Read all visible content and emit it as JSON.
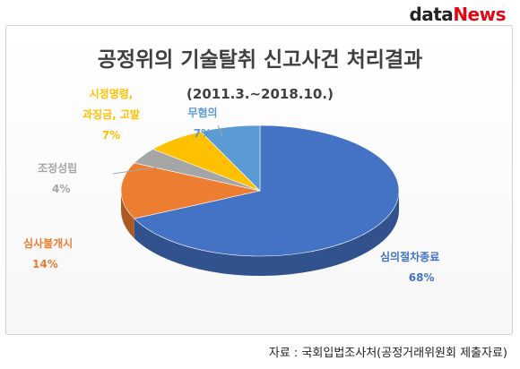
{
  "logo": {
    "part1": "data",
    "part2": "News"
  },
  "chart_data": {
    "type": "pie",
    "title": "공정위의 기술탈취 신고사건 처리결과",
    "subtitle": "(2011.3.~2018.10.)",
    "slices": [
      {
        "name": "심의절차종료",
        "value": 68,
        "percent_label": "68%",
        "color": "#4472c4"
      },
      {
        "name": "심사불개시",
        "value": 14,
        "percent_label": "14%",
        "color": "#ed7d31"
      },
      {
        "name": "조정성립",
        "value": 4,
        "percent_label": "4%",
        "color": "#a5a5a5"
      },
      {
        "name_lines": [
          "시정명령,",
          "과징금, 고발"
        ],
        "value": 7,
        "percent_label": "7%",
        "color": "#ffc000"
      },
      {
        "name": "무혐의",
        "value": 7,
        "percent_label": "7%",
        "color": "#5b9bd5"
      }
    ],
    "label_colors": [
      "#4472c4",
      "#ed7d31",
      "#a5a5a5",
      "#ffc000",
      "#5b9bd5"
    ]
  },
  "source": "자료 : 국회입법조사처(공정거래위원회 제출자료)"
}
